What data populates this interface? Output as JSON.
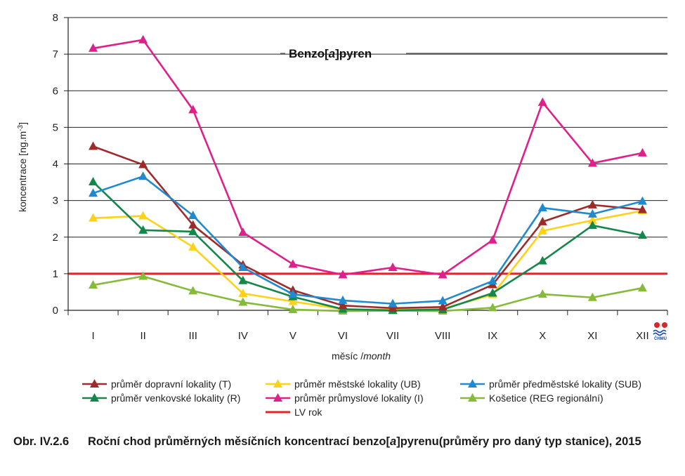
{
  "chart_data": {
    "type": "line",
    "title": "Benzo[a]pyren",
    "xlabel": "měsíc /month",
    "ylabel": "koncentrace [ng.m-3]",
    "ylim": [
      0,
      8
    ],
    "yticks": [
      "0",
      "1",
      "2",
      "3",
      "4",
      "5",
      "6",
      "7",
      "8"
    ],
    "grid": true,
    "categories": [
      "I",
      "II",
      "III",
      "IV",
      "V",
      "VI",
      "VII",
      "VIII",
      "IX",
      "X",
      "XI",
      "XII"
    ],
    "series": [
      {
        "name": "průměr dopravní lokality (T)",
        "color": "#9e2b2b",
        "values": [
          4.48,
          3.98,
          2.33,
          1.24,
          0.55,
          0.13,
          0.06,
          0.09,
          0.7,
          2.42,
          2.88,
          2.75
        ]
      },
      {
        "name": "průměr venkovské lokality (R)",
        "color": "#13884a",
        "values": [
          3.51,
          2.19,
          2.15,
          0.81,
          0.37,
          0.03,
          0.0,
          0.02,
          0.47,
          1.35,
          2.32,
          2.05
        ]
      },
      {
        "name": "průměr městské lokality (UB)",
        "color": "#ffd21a",
        "values": [
          2.52,
          2.58,
          1.73,
          0.46,
          0.24,
          0.03,
          0.02,
          0.04,
          0.43,
          2.17,
          2.46,
          2.72
        ]
      },
      {
        "name": "průměr průmyslové lokality (I)",
        "color": "#e0208a",
        "values": [
          7.16,
          7.39,
          5.48,
          2.13,
          1.26,
          0.97,
          1.17,
          0.97,
          1.92,
          5.68,
          4.02,
          4.3
        ]
      },
      {
        "name": "průměr předměstské lokality (SUB)",
        "color": "#1f8ad0",
        "values": [
          3.2,
          3.66,
          2.59,
          1.17,
          0.44,
          0.27,
          0.18,
          0.26,
          0.8,
          2.8,
          2.63,
          2.98
        ]
      },
      {
        "name": "Košetice (REG regionální)",
        "color": "#86bb3a",
        "values": [
          0.69,
          0.93,
          0.53,
          0.22,
          0.02,
          -0.02,
          -0.01,
          -0.02,
          0.07,
          0.44,
          0.35,
          0.61
        ]
      }
    ],
    "reference_line": {
      "name": "LV rok",
      "value": 1,
      "color": "#e0242a"
    },
    "legend_placement": "bottom"
  },
  "logo": {
    "text": "ČHMÚ",
    "colors": [
      "#d8262a",
      "#1b4aa8"
    ]
  },
  "caption": {
    "number": "Obr. IV.2.6",
    "text": "Roční chod průměrných měsíčních koncentrací benzo[a]pyrenu(průměry pro daný typ stanice), 2015"
  }
}
